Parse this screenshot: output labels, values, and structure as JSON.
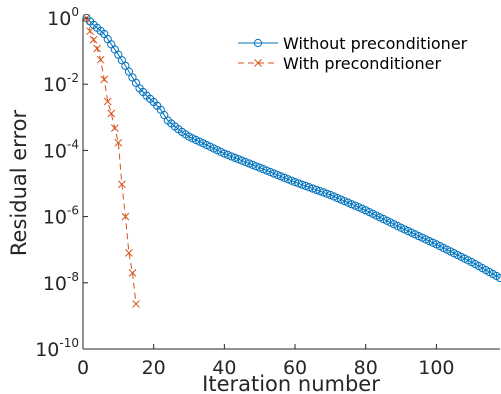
{
  "chart_data": {
    "type": "line",
    "xlabel": "Iteration number",
    "ylabel": "Residual error",
    "y_scale": "log",
    "xlim": [
      0,
      118
    ],
    "ylim": [
      1e-10,
      1
    ],
    "x_ticks": [
      0,
      20,
      40,
      60,
      80,
      100
    ],
    "y_ticks": [
      {
        "value": 1e-10,
        "base": "10",
        "exp": "-10"
      },
      {
        "value": 1e-08,
        "base": "10",
        "exp": "-8"
      },
      {
        "value": 1e-06,
        "base": "10",
        "exp": "-6"
      },
      {
        "value": 0.0001,
        "base": "10",
        "exp": "-4"
      },
      {
        "value": 0.01,
        "base": "10",
        "exp": "-2"
      },
      {
        "value": 1,
        "base": "10",
        "exp": "0"
      }
    ],
    "grid": false,
    "legend_position": "top-right",
    "series": [
      {
        "name": "Without preconditioner",
        "color": "#0072bd",
        "line_style": "solid",
        "marker": "circle",
        "control_points": [
          [
            1,
            1.0
          ],
          [
            3,
            0.62
          ],
          [
            6,
            0.33
          ],
          [
            8,
            0.16
          ],
          [
            10,
            0.078
          ],
          [
            12,
            0.036
          ],
          [
            14,
            0.016
          ],
          [
            16,
            0.0075
          ],
          [
            18,
            0.0045
          ],
          [
            20,
            0.0029
          ],
          [
            22,
            0.0017
          ],
          [
            24,
            0.0008
          ],
          [
            26,
            0.00053
          ],
          [
            28,
            0.00036
          ],
          [
            30,
            0.00026
          ],
          [
            35,
            0.000145
          ],
          [
            40,
            8e-05
          ],
          [
            50,
            3e-05
          ],
          [
            60,
            1.1e-05
          ],
          [
            70,
            4.5e-06
          ],
          [
            80,
            1.55e-06
          ],
          [
            90,
            4.6e-07
          ],
          [
            100,
            1.45e-07
          ],
          [
            110,
            4.2e-08
          ],
          [
            118,
            1.4e-08
          ]
        ]
      },
      {
        "name": "With preconditioner",
        "color": "#d95319",
        "line_style": "dashed",
        "marker": "x",
        "points": [
          [
            1,
            1.0
          ],
          [
            2,
            0.4
          ],
          [
            3,
            0.22
          ],
          [
            4,
            0.12
          ],
          [
            5,
            0.055
          ],
          [
            6,
            0.014
          ],
          [
            7,
            0.003
          ],
          [
            8,
            0.0013
          ],
          [
            9,
            0.00047
          ],
          [
            10,
            0.00017
          ],
          [
            11,
            9.5e-06
          ],
          [
            12,
            1e-06
          ],
          [
            13,
            8e-08
          ],
          [
            14,
            2e-08
          ],
          [
            15,
            2.3e-09
          ]
        ]
      }
    ]
  }
}
